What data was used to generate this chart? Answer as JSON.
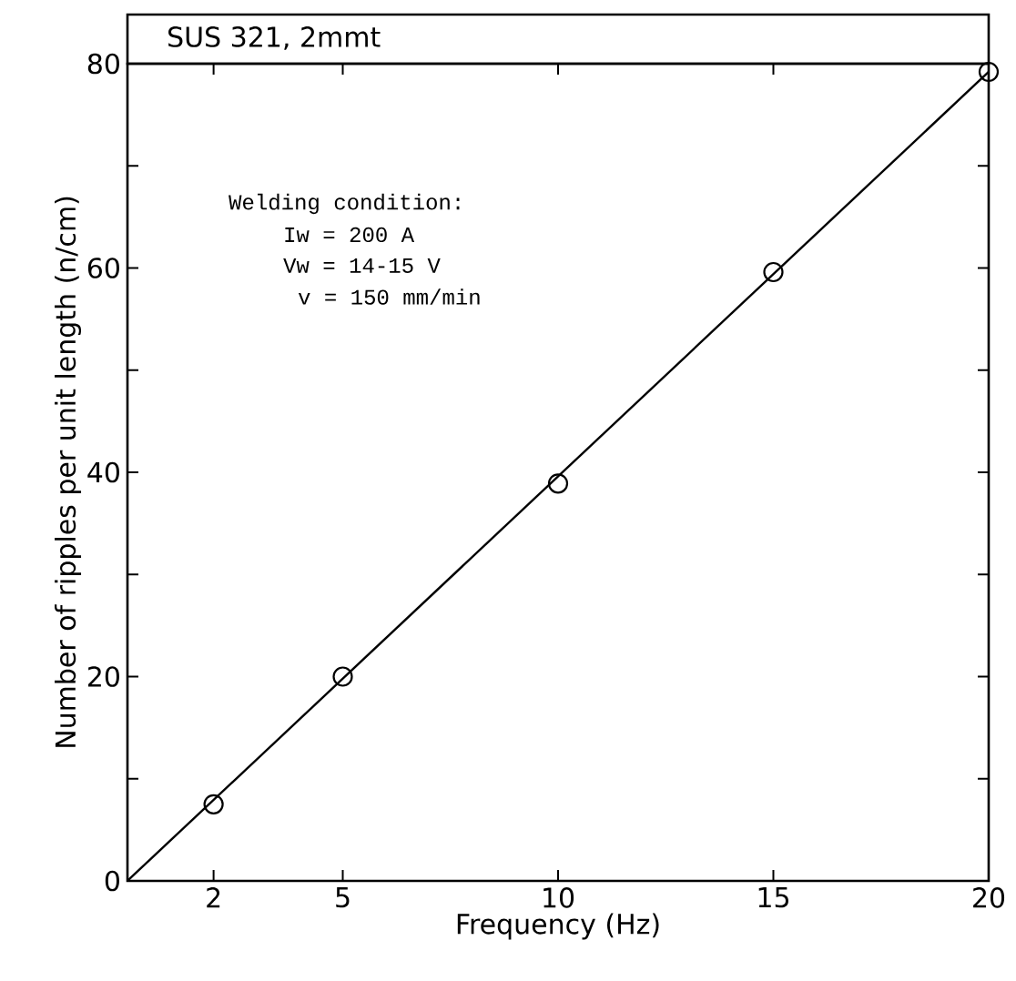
{
  "chart_data": {
    "type": "scatter",
    "title": "SUS 321, 2mmt",
    "xlabel": "Frequency (Hz)",
    "ylabel": "Number of ripples per unit length (n/cm)",
    "annotations": [
      "Welding condition:",
      "Iw = 200 A",
      "Vw = 14-15 V",
      "v = 150 mm/min"
    ],
    "xlim": [
      0,
      20
    ],
    "xticks": [
      2,
      5,
      10,
      15,
      20
    ],
    "ylim": [
      0,
      80
    ],
    "yticks": [
      0,
      {
        "value": 10,
        "label": null
      },
      20,
      {
        "value": 30,
        "label": null
      },
      40,
      {
        "value": 50,
        "label": null
      },
      60,
      {
        "value": 70,
        "label": null
      },
      80
    ],
    "series": [
      {
        "color": "#000000",
        "marker": "circle",
        "x": [
          2,
          5,
          10,
          15,
          20
        ],
        "values": [
          7.5,
          20.0,
          38.9,
          59.6,
          79.2
        ]
      },
      {
        "type": "line",
        "color": "#000000",
        "marker": "none",
        "line_style": "solid",
        "x": [
          0,
          20
        ],
        "values": [
          0,
          79.2
        ]
      }
    ]
  }
}
